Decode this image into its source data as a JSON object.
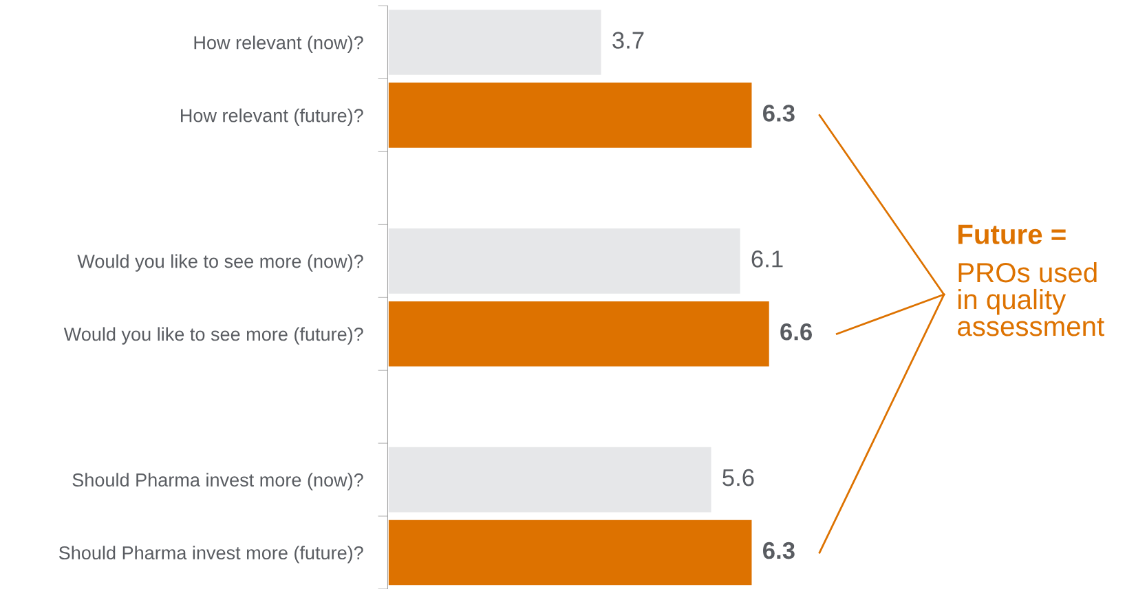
{
  "chart_data": {
    "type": "bar",
    "orientation": "horizontal",
    "data_labels": true,
    "categories": [
      "How relevant (now)?",
      "How relevant (future)?",
      null,
      "Would you like to see more (now)?",
      "Would you like to see more (future)?",
      null,
      "Should Pharma invest more (now)?",
      "Should Pharma invest more (future)?"
    ],
    "series": [
      {
        "color": "#e6e7e9",
        "values": [
          3.7,
          null,
          null,
          6.1,
          null,
          null,
          5.6,
          null
        ]
      },
      {
        "color": "#dd7200",
        "values": [
          null,
          6.3,
          null,
          null,
          6.6,
          null,
          null,
          6.3
        ]
      }
    ],
    "annotations": [
      "Future =\nPROs used\nin quality\nassessment"
    ]
  }
}
